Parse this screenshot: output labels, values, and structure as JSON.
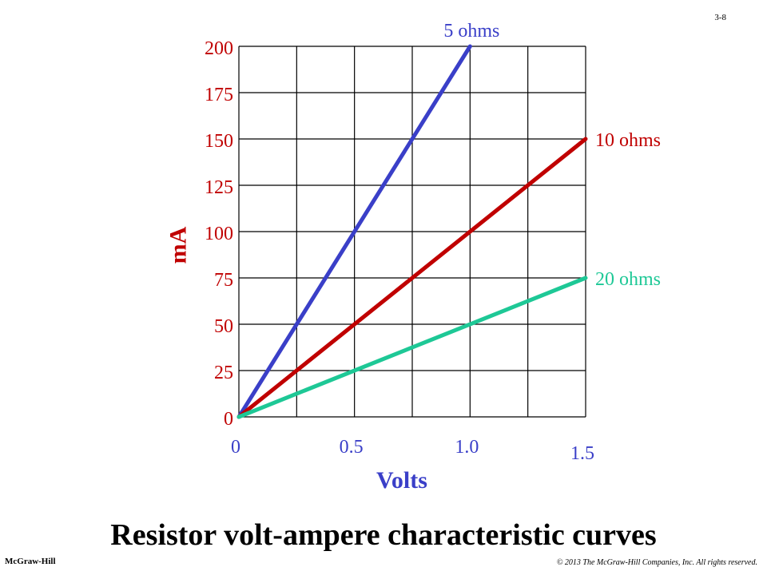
{
  "slide_number": "3-8",
  "footer": {
    "publisher": "McGraw-Hill",
    "copyright": "© 2013 The McGraw-Hill Companies, Inc. All rights reserved."
  },
  "colors": {
    "five_ohms": "#3a3fc8",
    "ten_ohms": "#c00000",
    "twenty_ohms": "#1ec896",
    "axis_text": "#c00000",
    "x_axis_text": "#3a3fc8",
    "grid": "#000000"
  },
  "chart_data": {
    "type": "line",
    "title": "Resistor volt-ampere characteristic curves",
    "xlabel": "Volts",
    "ylabel": "mA",
    "xlim": [
      0,
      1.5
    ],
    "ylim": [
      0,
      200
    ],
    "grid": true,
    "x_grid_step": 0.25,
    "y_grid_step": 25,
    "x_tick_labels": [
      {
        "value": 0,
        "label": "0"
      },
      {
        "value": 0.5,
        "label": "0.5"
      },
      {
        "value": 1.0,
        "label": "1.0"
      },
      {
        "value": 1.5,
        "label": "1.5"
      }
    ],
    "y_tick_labels": [
      {
        "value": 0,
        "label": "0"
      },
      {
        "value": 25,
        "label": "25"
      },
      {
        "value": 50,
        "label": "50"
      },
      {
        "value": 75,
        "label": "75"
      },
      {
        "value": 100,
        "label": "100"
      },
      {
        "value": 125,
        "label": "125"
      },
      {
        "value": 150,
        "label": "150"
      },
      {
        "value": 175,
        "label": "175"
      },
      {
        "value": 200,
        "label": "200"
      }
    ],
    "series": [
      {
        "name": "5 ohms",
        "color_key": "five_ohms",
        "x": [
          0,
          1.0
        ],
        "y": [
          0,
          200
        ],
        "label_position": "top"
      },
      {
        "name": "10 ohms",
        "color_key": "ten_ohms",
        "x": [
          0,
          1.5
        ],
        "y": [
          0,
          150
        ],
        "label_position": "right"
      },
      {
        "name": "20 ohms",
        "color_key": "twenty_ohms",
        "x": [
          0,
          1.5
        ],
        "y": [
          0,
          75
        ],
        "label_position": "right"
      }
    ]
  }
}
